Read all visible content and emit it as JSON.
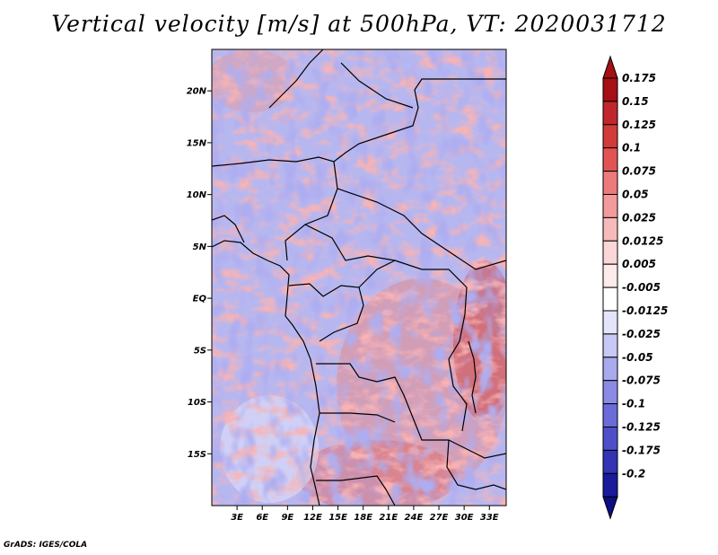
{
  "title": "Vertical velocity [m/s] at 500hPa, VT: 2020031712",
  "credit": "GrADS: IGES/COLA",
  "map": {
    "lat_range": [
      -20,
      24
    ],
    "lon_range": [
      0,
      35
    ],
    "lat_ticks": [
      {
        "value": 20,
        "label": "20N"
      },
      {
        "value": 15,
        "label": "15N"
      },
      {
        "value": 10,
        "label": "10N"
      },
      {
        "value": 5,
        "label": "5N"
      },
      {
        "value": 0,
        "label": "EQ"
      },
      {
        "value": -5,
        "label": "5S"
      },
      {
        "value": -10,
        "label": "10S"
      },
      {
        "value": -15,
        "label": "15S"
      }
    ],
    "lon_ticks": [
      {
        "value": 3,
        "label": "3E"
      },
      {
        "value": 6,
        "label": "6E"
      },
      {
        "value": 9,
        "label": "9E"
      },
      {
        "value": 12,
        "label": "12E"
      },
      {
        "value": 15,
        "label": "15E"
      },
      {
        "value": 18,
        "label": "18E"
      },
      {
        "value": 21,
        "label": "21E"
      },
      {
        "value": 24,
        "label": "24E"
      },
      {
        "value": 27,
        "label": "27E"
      },
      {
        "value": 30,
        "label": "30E"
      },
      {
        "value": 33,
        "label": "33E"
      }
    ]
  },
  "colorbar": {
    "levels": [
      {
        "label": "0.175",
        "color": "#a50f15"
      },
      {
        "label": "0.15",
        "color": "#c0262b"
      },
      {
        "label": "0.125",
        "color": "#d33a3a"
      },
      {
        "label": "0.1",
        "color": "#e25454"
      },
      {
        "label": "0.075",
        "color": "#ec7a7a"
      },
      {
        "label": "0.05",
        "color": "#f39b9b"
      },
      {
        "label": "0.025",
        "color": "#f7baba"
      },
      {
        "label": "0.0125",
        "color": "#fbd6d6"
      },
      {
        "label": "0.005",
        "color": "#fdeaea"
      },
      {
        "label": "-0.005",
        "color": "#ffffff"
      },
      {
        "label": "-0.0125",
        "color": "#e4e4fb"
      },
      {
        "label": "-0.025",
        "color": "#c8c8f5"
      },
      {
        "label": "-0.05",
        "color": "#a9a9ee"
      },
      {
        "label": "-0.075",
        "color": "#8a8ae5"
      },
      {
        "label": "-0.1",
        "color": "#6b6bd9"
      },
      {
        "label": "-0.125",
        "color": "#4f4fc9"
      },
      {
        "label": "-0.175",
        "color": "#3333b5"
      },
      {
        "label": "-0.2",
        "color": "#1a1a9c"
      }
    ],
    "top_arrow_color": "#a50f15",
    "bottom_arrow_color": "#0d0d85"
  }
}
